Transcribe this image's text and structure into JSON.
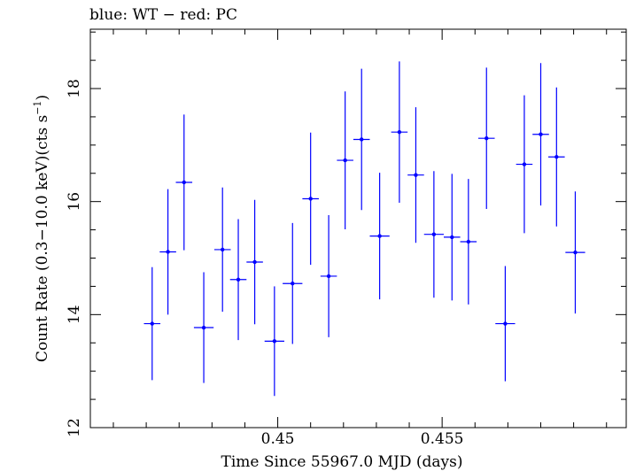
{
  "chart_data": {
    "type": "scatter",
    "title": "blue: WT − red: PC",
    "xlabel": "Time Since 55967.0 MJD (days)",
    "ylabel_main": "Count Rate (0.3−10.0 keV)(cts s",
    "ylabel_sup": "−1",
    "ylabel_close": ")",
    "xlim": [
      0.4443,
      0.4606
    ],
    "ylim": [
      12,
      19.05
    ],
    "xticks": [
      0.45,
      0.455
    ],
    "xtick_labels": [
      "0.45",
      "0.455"
    ],
    "xminor_step": 0.001,
    "yticks": [
      12,
      14,
      16,
      18
    ],
    "ytick_labels": [
      "12",
      "14",
      "16",
      "18"
    ],
    "yminor_step": 0.5,
    "series": [
      {
        "name": "WT",
        "color": "#0000ff",
        "points": [
          {
            "x": 0.44618,
            "xerr": 0.00025,
            "y": 13.84,
            "yerr": 1.0
          },
          {
            "x": 0.44666,
            "xerr": 0.00025,
            "y": 15.11,
            "yerr": 1.11
          },
          {
            "x": 0.44715,
            "xerr": 0.00025,
            "y": 16.34,
            "yerr": 1.2
          },
          {
            "x": 0.44775,
            "xerr": 0.0003,
            "y": 13.77,
            "yerr": 0.98
          },
          {
            "x": 0.44832,
            "xerr": 0.00025,
            "y": 15.15,
            "yerr": 1.1
          },
          {
            "x": 0.4488,
            "xerr": 0.00025,
            "y": 14.62,
            "yerr": 1.07
          },
          {
            "x": 0.4493,
            "xerr": 0.00025,
            "y": 14.93,
            "yerr": 1.1
          },
          {
            "x": 0.4499,
            "xerr": 0.0003,
            "y": 13.53,
            "yerr": 0.97
          },
          {
            "x": 0.45045,
            "xerr": 0.0003,
            "y": 14.55,
            "yerr": 1.07
          },
          {
            "x": 0.451,
            "xerr": 0.00025,
            "y": 16.05,
            "yerr": 1.17
          },
          {
            "x": 0.45155,
            "xerr": 0.00025,
            "y": 14.68,
            "yerr": 1.08
          },
          {
            "x": 0.45205,
            "xerr": 0.00025,
            "y": 16.73,
            "yerr": 1.22
          },
          {
            "x": 0.45255,
            "xerr": 0.00025,
            "y": 17.1,
            "yerr": 1.25
          },
          {
            "x": 0.4531,
            "xerr": 0.0003,
            "y": 15.39,
            "yerr": 1.12
          },
          {
            "x": 0.4537,
            "xerr": 0.00025,
            "y": 17.23,
            "yerr": 1.25
          },
          {
            "x": 0.4542,
            "xerr": 0.00025,
            "y": 16.47,
            "yerr": 1.2
          },
          {
            "x": 0.45475,
            "xerr": 0.0003,
            "y": 15.42,
            "yerr": 1.12
          },
          {
            "x": 0.4553,
            "xerr": 0.00025,
            "y": 15.37,
            "yerr": 1.12
          },
          {
            "x": 0.4558,
            "xerr": 0.00025,
            "y": 15.29,
            "yerr": 1.11
          },
          {
            "x": 0.45635,
            "xerr": 0.00025,
            "y": 17.12,
            "yerr": 1.25
          },
          {
            "x": 0.45692,
            "xerr": 0.0003,
            "y": 13.84,
            "yerr": 1.02
          },
          {
            "x": 0.4575,
            "xerr": 0.00025,
            "y": 16.66,
            "yerr": 1.22
          },
          {
            "x": 0.458,
            "xerr": 0.00025,
            "y": 17.19,
            "yerr": 1.26
          },
          {
            "x": 0.45848,
            "xerr": 0.00025,
            "y": 16.79,
            "yerr": 1.23
          },
          {
            "x": 0.45905,
            "xerr": 0.0003,
            "y": 15.1,
            "yerr": 1.08
          }
        ]
      }
    ]
  }
}
